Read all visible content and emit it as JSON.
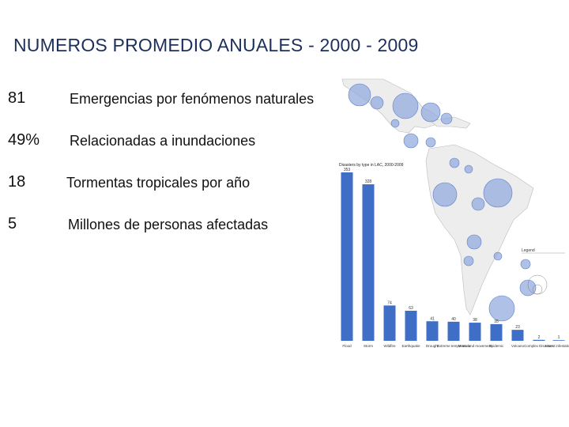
{
  "slide": {
    "title": "NUMEROS PROMEDIO ANUALES  - 2000 - 2009",
    "stats": [
      {
        "value": "81",
        "label": "Emergencias por fenómenos naturales"
      },
      {
        "value": "49%",
        "label": "Relacionadas a inundaciones"
      },
      {
        "value": "18",
        "label": "Tormentas tropicales por año"
      },
      {
        "value": "5",
        "label": "Millones de personas afectadas"
      }
    ]
  },
  "figure": {
    "colors": {
      "bar": "#3f6ec6",
      "land": "#eeeeee",
      "bubble": "#8fa7de",
      "bubble_stroke": "#5f7fc8"
    },
    "chart_title": "Disasters by type in LAC, 2000-2009",
    "legend_title": "Legend"
  },
  "chart_data": {
    "type": "bar",
    "title": "Disasters by type in LAC, 2000-2009",
    "xlabel": "",
    "ylabel": "",
    "categories": [
      "Flood",
      "Storm",
      "Wildfire",
      "Earthquake",
      "Drought",
      "Extreme temperature",
      "Mass land movement",
      "Epidemic",
      "Volcano",
      "Complex Disasters",
      "Insect infestation"
    ],
    "values": [
      353,
      328,
      74,
      63,
      41,
      40,
      38,
      35,
      23,
      2,
      1
    ],
    "ylim": [
      0,
      360
    ]
  }
}
